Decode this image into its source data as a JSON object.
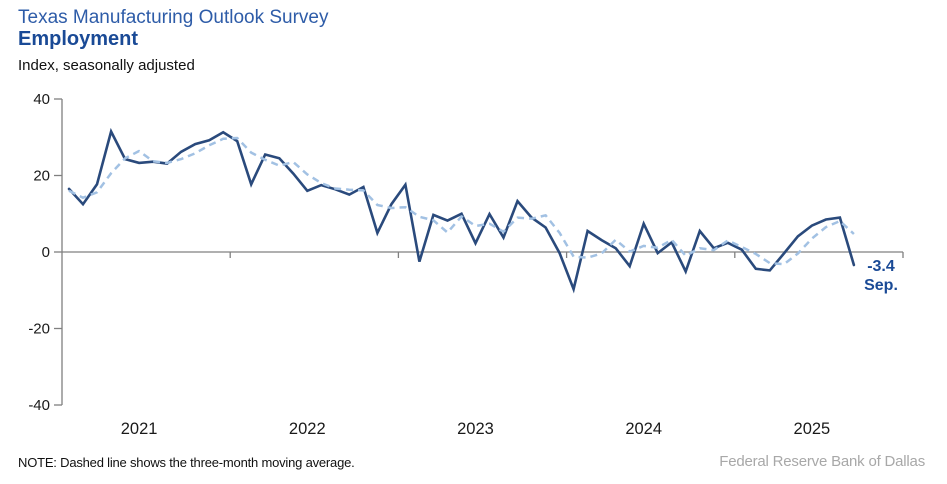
{
  "header": {
    "title": "Texas Manufacturing Outlook Survey",
    "subtitle": "Employment",
    "units_label": "Index, seasonally adjusted"
  },
  "chart_data": {
    "type": "line",
    "x_start": "2021-01",
    "x_end": "2025-09",
    "ylim": [
      -40,
      40
    ],
    "yticks": [
      40,
      20,
      0,
      -20,
      -40
    ],
    "xtick_year_labels": [
      "2021",
      "2022",
      "2023",
      "2024",
      "2025"
    ],
    "grid": "off",
    "legend": "none (dashed line explained in footnote)",
    "series": [
      {
        "name": "Employment index (monthly, seasonally adjusted)",
        "style": "solid",
        "color": "#2a4a7c",
        "values": [
          16.5,
          12.5,
          17.7,
          31.5,
          24.3,
          23.3,
          23.6,
          23.1,
          26.2,
          28.2,
          29.2,
          31.3,
          29.0,
          17.7,
          25.5,
          24.5,
          20.5,
          16.0,
          17.5,
          16.4,
          15.0,
          17.0,
          5.0,
          12.5,
          17.6,
          -2.5,
          9.7,
          8.2,
          10.0,
          2.3,
          9.9,
          3.8,
          13.3,
          9.0,
          6.4,
          -0.3,
          -9.7,
          5.5,
          3.1,
          1.0,
          -3.7,
          7.4,
          -0.3,
          2.5,
          -5.1,
          5.5,
          1.0,
          2.4,
          0.6,
          -4.4,
          -4.8,
          -0.4,
          4.1,
          6.9,
          8.5,
          9.0,
          -3.4
        ]
      },
      {
        "name": "Three-month moving average",
        "style": "dashed",
        "color": "#a2c1e3",
        "values": [
          16.0,
          14.2,
          15.6,
          20.6,
          24.5,
          26.4,
          23.7,
          23.3,
          24.3,
          25.8,
          27.9,
          29.6,
          29.8,
          26.0,
          24.1,
          22.6,
          23.5,
          20.3,
          18.0,
          16.6,
          16.3,
          16.1,
          12.3,
          11.5,
          11.7,
          9.2,
          8.3,
          5.1,
          9.3,
          6.8,
          7.4,
          5.3,
          9.0,
          8.7,
          9.6,
          5.0,
          -1.2,
          -1.5,
          -0.4,
          3.2,
          0.1,
          1.6,
          1.1,
          3.2,
          -1.0,
          1.0,
          0.5,
          3.0,
          1.3,
          -0.5,
          -2.9,
          -3.2,
          -0.4,
          3.5,
          6.5,
          8.1,
          4.7
        ]
      }
    ],
    "annotation": {
      "value_label": "-3.4",
      "month_label": "Sep.",
      "color": "#1a4a96"
    },
    "axis_color": "#808080",
    "tick_label_color": "#1a1a1a"
  },
  "footer": {
    "note": "NOTE: Dashed line shows the three-month  moving average.",
    "source": "Federal Reserve Bank of Dallas"
  }
}
